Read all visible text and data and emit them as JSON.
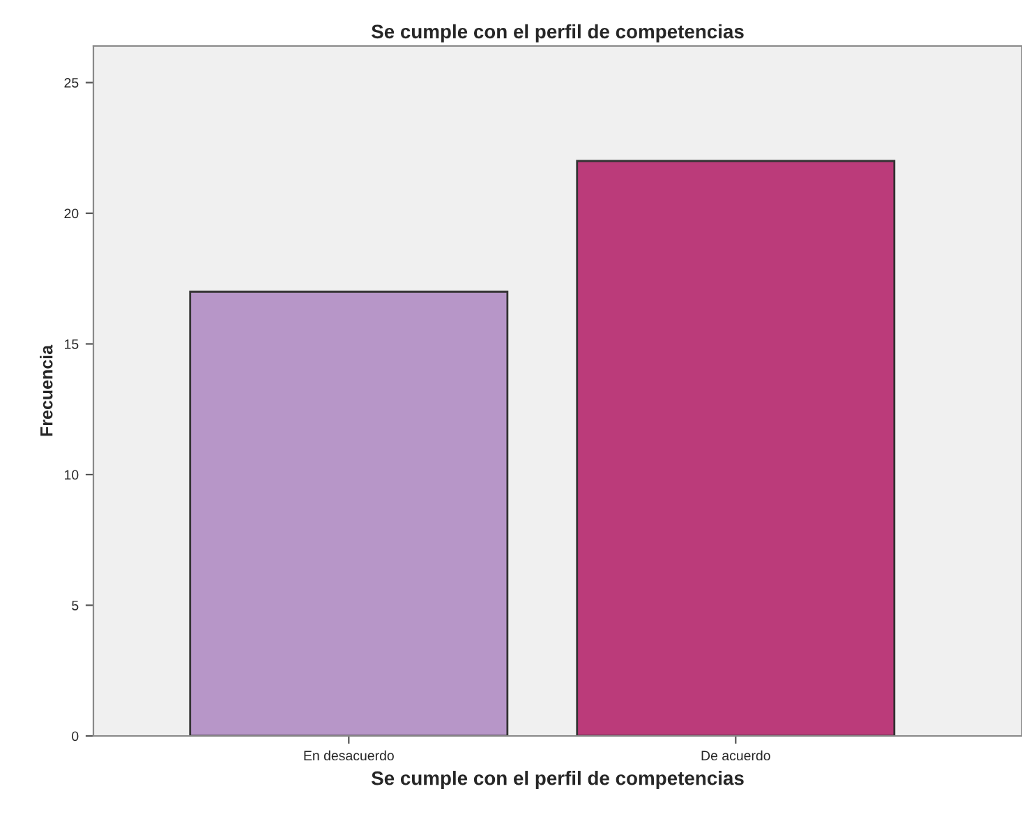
{
  "chart_data": {
    "type": "bar",
    "title": "Se cumple con el perfil de competencias",
    "xlabel": "Se cumple con el perfil de competencias",
    "ylabel": "Frecuencia",
    "categories": [
      "En desacuerdo",
      "De acuerdo"
    ],
    "values": [
      17,
      22
    ],
    "colors": [
      "#b796c8",
      "#bb3b7a"
    ],
    "ylim": [
      0,
      26.4
    ],
    "yticks": [
      0,
      5,
      10,
      15,
      20,
      25
    ],
    "grid": false,
    "legend": false
  }
}
